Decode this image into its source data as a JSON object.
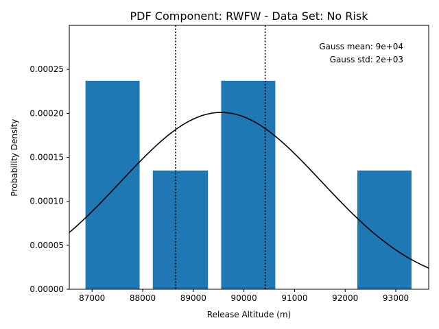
{
  "chart_data": {
    "type": "bar",
    "title": "PDF Component: RWFW - Data Set: No Risk",
    "xlabel": "Release Altitude (m)",
    "ylabel": "Probability Density",
    "xlim": [
      86550,
      93650
    ],
    "ylim": [
      0,
      0.0003
    ],
    "xticks": [
      87000,
      88000,
      89000,
      90000,
      91000,
      92000,
      93000
    ],
    "xtick_labels": [
      "87000",
      "88000",
      "89000",
      "90000",
      "91000",
      "92000",
      "93000"
    ],
    "yticks": [
      0,
      5e-05,
      0.0001,
      0.00015,
      0.0002,
      0.00025
    ],
    "ytick_labels": [
      "0.00000",
      "0.00005",
      "0.00010",
      "0.00015",
      "0.00020",
      "0.00025"
    ],
    "bar_color": "#1f77b4",
    "bars": [
      {
        "x0": 86870,
        "x1": 87940,
        "value": 0.000237
      },
      {
        "x0": 88200,
        "x1": 89290,
        "value": 0.000135
      },
      {
        "x0": 89550,
        "x1": 90620,
        "value": 0.000237
      },
      {
        "x0": 92240,
        "x1": 93310,
        "value": 0.000135
      }
    ],
    "gauss_curve": {
      "mean": 89550,
      "std": 1990,
      "peak": 0.000201,
      "color": "#000000"
    },
    "vlines": [
      {
        "x": 88650,
        "style": "dotted",
        "color": "#000000"
      },
      {
        "x": 90420,
        "style": "dotted",
        "color": "#000000"
      }
    ],
    "annotations": [
      "Gauss mean: 9e+04",
      "Gauss std: 2e+03"
    ]
  }
}
